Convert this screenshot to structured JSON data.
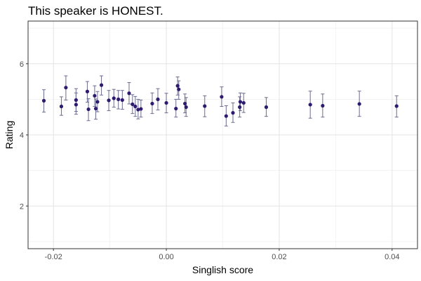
{
  "chart_data": {
    "type": "scatter",
    "title": "This speaker is HONEST.",
    "xlabel": "Singlish score",
    "ylabel": "Rating",
    "xlim": [
      -0.0245,
      0.0445
    ],
    "ylim": [
      0.8,
      7.2
    ],
    "x_ticks": [
      -0.02,
      0.0,
      0.02,
      0.04
    ],
    "x_tick_labels": [
      "-0.02",
      "0.00",
      "0.02",
      "0.04"
    ],
    "y_ticks": [
      2,
      4,
      6
    ],
    "y_tick_labels": [
      "2",
      "4",
      "6"
    ],
    "grid": true,
    "legend": "none",
    "error_bars": true,
    "point_color": "#2e1a6e",
    "errorbar_color": "#6b6b8e",
    "points": [
      {
        "x": -0.0217,
        "y": 4.96,
        "lo": 4.64,
        "hi": 5.27
      },
      {
        "x": -0.0186,
        "y": 4.8,
        "lo": 4.55,
        "hi": 5.07
      },
      {
        "x": -0.0178,
        "y": 5.33,
        "lo": 4.98,
        "hi": 5.66
      },
      {
        "x": -0.016,
        "y": 4.98,
        "lo": 4.66,
        "hi": 5.3
      },
      {
        "x": -0.016,
        "y": 4.85,
        "lo": 4.58,
        "hi": 5.18
      },
      {
        "x": -0.014,
        "y": 5.22,
        "lo": 4.92,
        "hi": 5.5
      },
      {
        "x": -0.0138,
        "y": 4.72,
        "lo": 4.4,
        "hi": 5.02
      },
      {
        "x": -0.0127,
        "y": 5.1,
        "lo": 4.8,
        "hi": 5.38
      },
      {
        "x": -0.0125,
        "y": 4.74,
        "lo": 4.44,
        "hi": 5.01
      },
      {
        "x": -0.0122,
        "y": 4.93,
        "lo": 4.65,
        "hi": 5.22
      },
      {
        "x": -0.0115,
        "y": 5.4,
        "lo": 5.12,
        "hi": 5.66
      },
      {
        "x": -0.0102,
        "y": 4.97,
        "lo": 4.68,
        "hi": 5.25
      },
      {
        "x": -0.0093,
        "y": 5.03,
        "lo": 4.78,
        "hi": 5.28
      },
      {
        "x": -0.0085,
        "y": 5.0,
        "lo": 4.73,
        "hi": 5.25
      },
      {
        "x": -0.0078,
        "y": 4.98,
        "lo": 4.72,
        "hi": 5.25
      },
      {
        "x": -0.0066,
        "y": 5.17,
        "lo": 4.87,
        "hi": 5.47
      },
      {
        "x": -0.006,
        "y": 4.86,
        "lo": 4.6,
        "hi": 5.13
      },
      {
        "x": -0.0055,
        "y": 4.8,
        "lo": 4.52,
        "hi": 5.08
      },
      {
        "x": -0.005,
        "y": 4.71,
        "lo": 4.45,
        "hi": 5.0
      },
      {
        "x": -0.0045,
        "y": 4.73,
        "lo": 4.5,
        "hi": 4.98
      },
      {
        "x": -0.0025,
        "y": 4.88,
        "lo": 4.6,
        "hi": 5.18
      },
      {
        "x": -0.0015,
        "y": 5.0,
        "lo": 4.7,
        "hi": 5.3
      },
      {
        "x": 0.0,
        "y": 4.9,
        "lo": 4.62,
        "hi": 5.17
      },
      {
        "x": 0.0017,
        "y": 4.74,
        "lo": 4.5,
        "hi": 5.0
      },
      {
        "x": 0.002,
        "y": 5.38,
        "lo": 5.12,
        "hi": 5.63
      },
      {
        "x": 0.0022,
        "y": 5.28,
        "lo": 5.0,
        "hi": 5.52
      },
      {
        "x": 0.0033,
        "y": 4.88,
        "lo": 4.62,
        "hi": 5.15
      },
      {
        "x": 0.0035,
        "y": 4.78,
        "lo": 4.52,
        "hi": 5.05
      },
      {
        "x": 0.0068,
        "y": 4.81,
        "lo": 4.51,
        "hi": 5.1
      },
      {
        "x": 0.0098,
        "y": 5.07,
        "lo": 4.8,
        "hi": 5.35
      },
      {
        "x": 0.0106,
        "y": 4.53,
        "lo": 4.25,
        "hi": 4.82
      },
      {
        "x": 0.0118,
        "y": 4.62,
        "lo": 4.35,
        "hi": 4.9
      },
      {
        "x": 0.013,
        "y": 4.78,
        "lo": 4.5,
        "hi": 5.07
      },
      {
        "x": 0.0131,
        "y": 4.93,
        "lo": 4.68,
        "hi": 5.18
      },
      {
        "x": 0.0137,
        "y": 4.9,
        "lo": 4.63,
        "hi": 5.17
      },
      {
        "x": 0.0177,
        "y": 4.78,
        "lo": 4.52,
        "hi": 5.05
      },
      {
        "x": 0.0255,
        "y": 4.85,
        "lo": 4.47,
        "hi": 5.23
      },
      {
        "x": 0.0277,
        "y": 4.82,
        "lo": 4.5,
        "hi": 5.15
      },
      {
        "x": 0.0342,
        "y": 4.87,
        "lo": 4.52,
        "hi": 5.23
      },
      {
        "x": 0.0408,
        "y": 4.81,
        "lo": 4.5,
        "hi": 5.1
      }
    ]
  }
}
